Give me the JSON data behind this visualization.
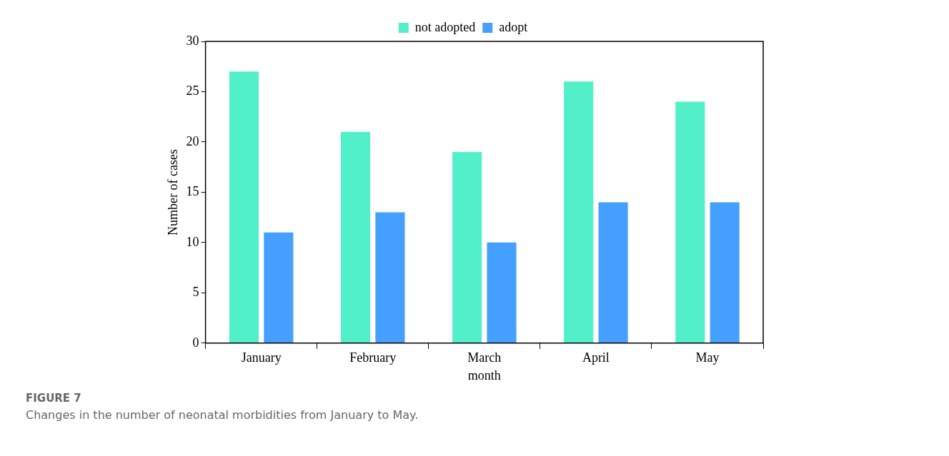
{
  "chart_data": {
    "type": "bar",
    "xlabel": "month",
    "ylabel": "Number of cases",
    "categories": [
      "January",
      "February",
      "March",
      "April",
      "May"
    ],
    "series": [
      {
        "name": "not adopted",
        "color": "#52f0c8",
        "values": [
          27,
          21,
          19,
          26,
          24
        ]
      },
      {
        "name": "adopt",
        "color": "#459ffe",
        "values": [
          11,
          13,
          10,
          14,
          14
        ]
      }
    ],
    "ylim": [
      0,
      30
    ],
    "yticks": [
      0,
      5,
      10,
      15,
      20,
      25,
      30
    ],
    "grid": false,
    "legend": "top",
    "annotations": [
      "FIGURE 7",
      "Changes in the number of neonatal morbidities from January to May."
    ]
  }
}
